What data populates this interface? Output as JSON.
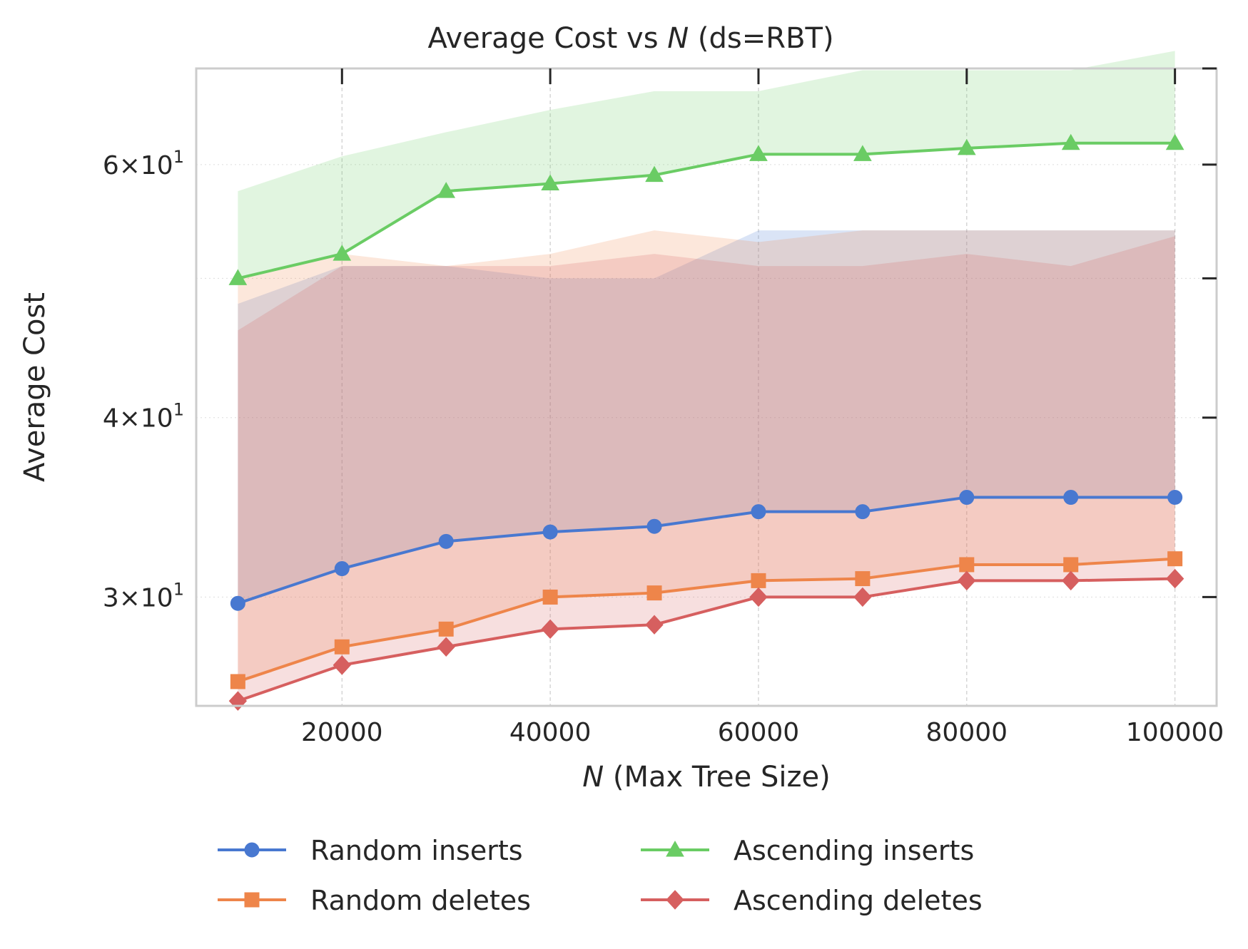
{
  "chart_data": {
    "type": "line",
    "title": {
      "prefix": "Average Cost vs ",
      "var": "N",
      "suffix": " (ds=RBT)"
    },
    "xlabel": {
      "var": "N",
      "suffix": " (Max Tree Size)"
    },
    "ylabel": "Average Cost",
    "y_scale": "log",
    "xlim": [
      6000,
      104000
    ],
    "ylim": [
      25.2,
      70.0
    ],
    "x_ticks": [
      20000,
      40000,
      60000,
      80000,
      100000
    ],
    "x_tick_labels": [
      "20000",
      "40000",
      "60000",
      "80000",
      "100000"
    ],
    "y_ticks": [
      {
        "value": 30,
        "mantissa": "3",
        "base": "10",
        "exp": "1"
      },
      {
        "value": 40,
        "mantissa": "4",
        "base": "10",
        "exp": "1"
      },
      {
        "value": 60,
        "mantissa": "6",
        "base": "10",
        "exp": "1"
      }
    ],
    "y_minor_ticks": [
      50,
      70
    ],
    "grid": true,
    "legend": "bottom-center",
    "x": [
      10000,
      20000,
      30000,
      40000,
      50000,
      60000,
      70000,
      80000,
      90000,
      100000
    ],
    "series": [
      {
        "name": "Random inserts",
        "color": "#4878d0",
        "marker": "circle",
        "values": [
          29.7,
          31.4,
          32.8,
          33.3,
          33.6,
          34.4,
          34.4,
          35.2,
          35.2,
          35.2
        ],
        "band_low": [
          29.7,
          31.4,
          32.8,
          33.3,
          33.6,
          34.4,
          34.4,
          35.2,
          35.2,
          35.2
        ],
        "band_high": [
          48.0,
          51.0,
          51.0,
          50.0,
          50.0,
          54.0,
          54.0,
          54.0,
          54.0,
          54.0
        ]
      },
      {
        "name": "Random deletes",
        "color": "#ee854a",
        "marker": "square",
        "values": [
          26.2,
          27.7,
          28.5,
          30.0,
          30.2,
          30.8,
          30.9,
          31.6,
          31.6,
          31.9
        ],
        "band_low": [
          26.2,
          27.7,
          28.5,
          30.0,
          30.2,
          30.8,
          30.9,
          31.6,
          31.6,
          31.9
        ],
        "band_high": [
          50.0,
          52.0,
          51.0,
          52.0,
          54.0,
          53.0,
          54.0,
          54.0,
          54.0,
          54.0
        ]
      },
      {
        "name": "Ascending inserts",
        "color": "#6acc64",
        "marker": "triangle",
        "values": [
          50.0,
          52.0,
          57.5,
          58.2,
          59.0,
          61.0,
          61.0,
          61.6,
          62.1,
          62.1
        ],
        "band_low": [
          50.0,
          52.0,
          57.5,
          58.2,
          59.0,
          61.0,
          61.0,
          61.6,
          62.1,
          62.1
        ],
        "band_high": [
          57.5,
          60.8,
          63.2,
          65.5,
          67.5,
          67.5,
          69.8,
          69.8,
          69.8,
          72.0
        ]
      },
      {
        "name": "Ascending deletes",
        "color": "#d65f5f",
        "marker": "diamond",
        "values": [
          25.4,
          26.9,
          27.7,
          28.5,
          28.7,
          30.0,
          30.0,
          30.8,
          30.8,
          30.9
        ],
        "band_low": [
          25.4,
          26.9,
          27.7,
          28.5,
          28.7,
          30.0,
          30.0,
          30.8,
          30.8,
          30.9
        ],
        "band_high": [
          46.0,
          51.0,
          51.0,
          51.0,
          52.0,
          51.0,
          51.0,
          52.0,
          51.0,
          53.5
        ]
      }
    ]
  }
}
